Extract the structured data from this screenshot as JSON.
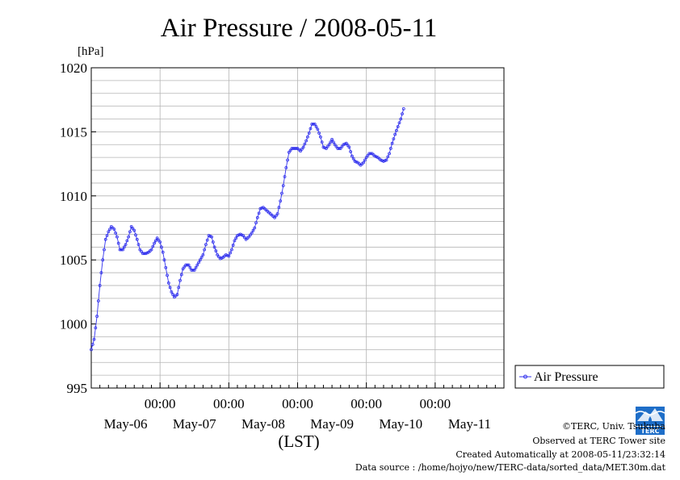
{
  "chart_data": {
    "type": "line",
    "title": "Air Pressure / 2008-05-11",
    "unit_label": "[hPa]",
    "xlabel": "(LST)",
    "ylim": [
      995,
      1020
    ],
    "yticks": [
      995,
      1000,
      1005,
      1010,
      1015,
      1020
    ],
    "xlim_hours": [
      0,
      144
    ],
    "x_day_ticks": [
      {
        "time": "00:00",
        "hour": 24
      },
      {
        "time": "00:00",
        "hour": 48
      },
      {
        "time": "00:00",
        "hour": 72
      },
      {
        "time": "00:00",
        "hour": 96
      },
      {
        "time": "00:00",
        "hour": 120
      }
    ],
    "x_day_labels": [
      {
        "label": "May-06",
        "hour": 12
      },
      {
        "label": "May-07",
        "hour": 36
      },
      {
        "label": "May-08",
        "hour": 60
      },
      {
        "label": "May-09",
        "hour": 84
      },
      {
        "label": "May-10",
        "hour": 108
      },
      {
        "label": "May-11",
        "hour": 132
      }
    ],
    "grid": true,
    "legend_position": "right",
    "series": [
      {
        "name": "Air Pressure",
        "color": "#3333ee",
        "marker": "circle",
        "keyframes": [
          [
            0,
            998.0
          ],
          [
            1,
            998.8
          ],
          [
            2,
            1000.6
          ],
          [
            3,
            1003.0
          ],
          [
            4,
            1005.0
          ],
          [
            5,
            1006.6
          ],
          [
            6,
            1007.2
          ],
          [
            7,
            1007.6
          ],
          [
            8,
            1007.4
          ],
          [
            9,
            1006.8
          ],
          [
            10,
            1005.8
          ],
          [
            11,
            1005.8
          ],
          [
            12,
            1006.2
          ],
          [
            13,
            1006.8
          ],
          [
            14,
            1007.6
          ],
          [
            15,
            1007.3
          ],
          [
            16,
            1006.6
          ],
          [
            17,
            1005.8
          ],
          [
            18,
            1005.5
          ],
          [
            19,
            1005.5
          ],
          [
            20,
            1005.6
          ],
          [
            21,
            1005.8
          ],
          [
            22,
            1006.3
          ],
          [
            23,
            1006.7
          ],
          [
            24,
            1006.4
          ],
          [
            25,
            1005.6
          ],
          [
            26,
            1004.4
          ],
          [
            27,
            1003.2
          ],
          [
            28,
            1002.5
          ],
          [
            29,
            1002.1
          ],
          [
            30,
            1002.3
          ],
          [
            31,
            1003.4
          ],
          [
            32,
            1004.3
          ],
          [
            33,
            1004.6
          ],
          [
            34,
            1004.6
          ],
          [
            35,
            1004.2
          ],
          [
            36,
            1004.2
          ],
          [
            37,
            1004.6
          ],
          [
            38,
            1005.0
          ],
          [
            39,
            1005.4
          ],
          [
            40,
            1006.2
          ],
          [
            41,
            1006.9
          ],
          [
            42,
            1006.8
          ],
          [
            43,
            1006.0
          ],
          [
            44,
            1005.4
          ],
          [
            45,
            1005.1
          ],
          [
            46,
            1005.2
          ],
          [
            47,
            1005.4
          ],
          [
            48,
            1005.3
          ],
          [
            49,
            1005.8
          ],
          [
            50,
            1006.5
          ],
          [
            51,
            1006.9
          ],
          [
            52,
            1007.0
          ],
          [
            53,
            1006.9
          ],
          [
            54,
            1006.6
          ],
          [
            55,
            1006.8
          ],
          [
            56,
            1007.1
          ],
          [
            57,
            1007.5
          ],
          [
            58,
            1008.3
          ],
          [
            59,
            1009.0
          ],
          [
            60,
            1009.1
          ],
          [
            61,
            1008.9
          ],
          [
            62,
            1008.7
          ],
          [
            63,
            1008.5
          ],
          [
            64,
            1008.3
          ],
          [
            65,
            1008.6
          ],
          [
            66,
            1009.6
          ],
          [
            67,
            1010.8
          ],
          [
            68,
            1012.2
          ],
          [
            69,
            1013.4
          ],
          [
            70,
            1013.7
          ],
          [
            71,
            1013.7
          ],
          [
            72,
            1013.7
          ],
          [
            73,
            1013.5
          ],
          [
            74,
            1013.8
          ],
          [
            75,
            1014.3
          ],
          [
            76,
            1014.9
          ],
          [
            77,
            1015.6
          ],
          [
            78,
            1015.6
          ],
          [
            79,
            1015.2
          ],
          [
            80,
            1014.6
          ],
          [
            81,
            1013.8
          ],
          [
            82,
            1013.7
          ],
          [
            83,
            1014.0
          ],
          [
            84,
            1014.4
          ],
          [
            85,
            1014.0
          ],
          [
            86,
            1013.7
          ],
          [
            87,
            1013.7
          ],
          [
            88,
            1014.0
          ],
          [
            89,
            1014.1
          ],
          [
            90,
            1013.8
          ],
          [
            91,
            1013.1
          ],
          [
            92,
            1012.7
          ],
          [
            93,
            1012.6
          ],
          [
            94,
            1012.4
          ],
          [
            95,
            1012.6
          ],
          [
            96,
            1013.0
          ],
          [
            97,
            1013.3
          ],
          [
            98,
            1013.3
          ],
          [
            99,
            1013.1
          ],
          [
            100,
            1013.0
          ],
          [
            101,
            1012.8
          ],
          [
            102,
            1012.7
          ],
          [
            103,
            1012.8
          ],
          [
            104,
            1013.3
          ],
          [
            105,
            1014.1
          ],
          [
            106,
            1014.8
          ],
          [
            107,
            1015.4
          ],
          [
            108,
            1016.0
          ],
          [
            109,
            1016.8
          ]
        ]
      }
    ]
  },
  "credits": {
    "copyright": "©TERC, Univ. Tsukuba",
    "observed": "Observed at TERC Tower site",
    "created": "Created Automatically at 2008-05-11/23:32:14",
    "source": "Data source : /home/hojyo/new/TERC-data/sorted_data/MET.30m.dat"
  },
  "logo": {
    "label": "TERC",
    "color": "#1e6ec8"
  }
}
